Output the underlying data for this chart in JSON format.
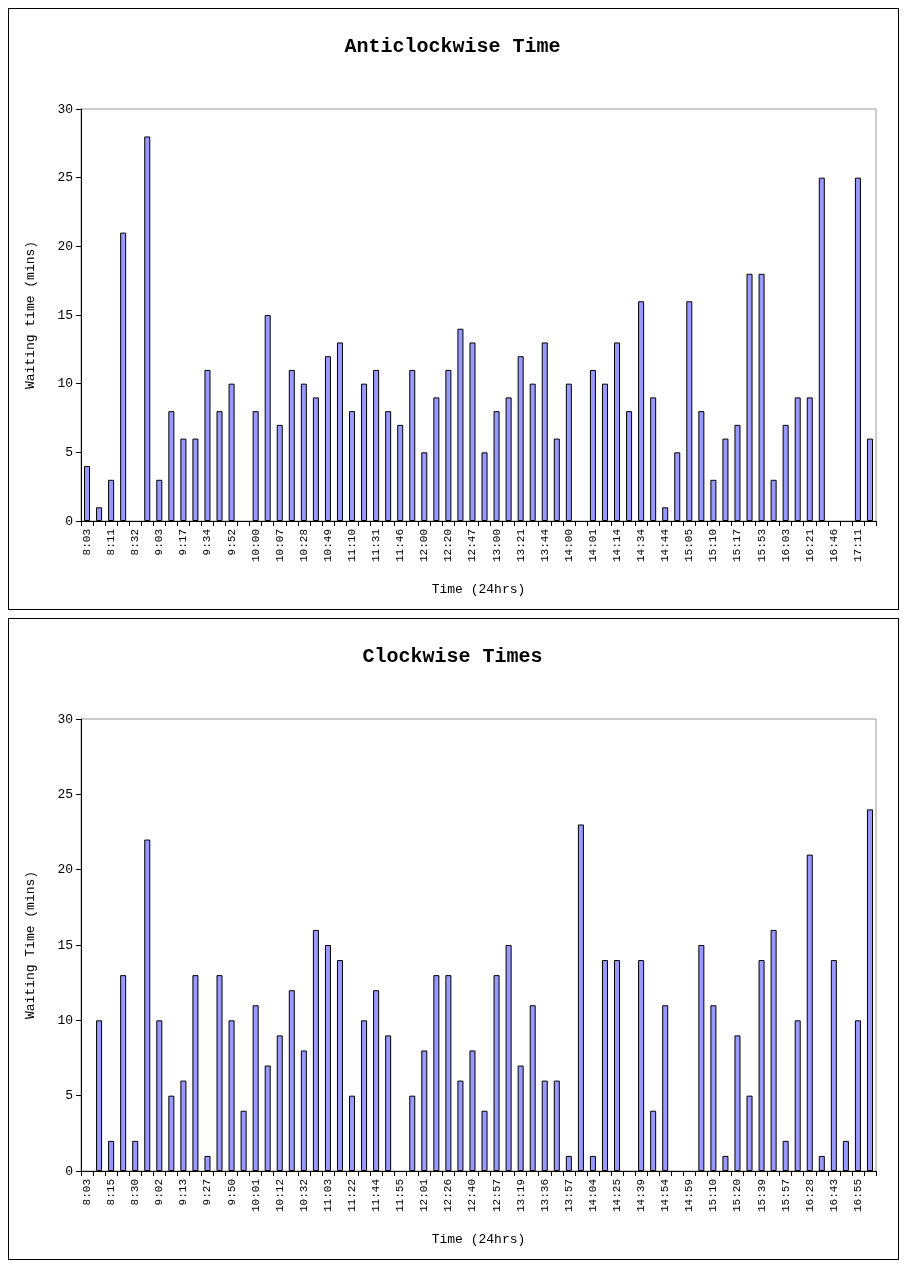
{
  "chart_data": [
    {
      "type": "bar",
      "title": "Anticlockwise Time",
      "xlabel": "Time (24hrs)",
      "ylabel": "Waiting time (mins)",
      "categories": [
        "8:03",
        null,
        "8:11",
        null,
        "8:32",
        null,
        "9:03",
        null,
        "9:17",
        null,
        "9:34",
        null,
        "9:52",
        null,
        "10:00",
        null,
        "10:07",
        null,
        "10:28",
        null,
        "10:49",
        null,
        "11:10",
        null,
        "11:31",
        null,
        "11:46",
        null,
        "12:00",
        null,
        "12:20",
        null,
        "12:47",
        null,
        "13:00",
        null,
        "13:21",
        null,
        "13:44",
        null,
        "14:00",
        null,
        "14:01",
        null,
        "14:14",
        null,
        "14:34",
        null,
        "14:44",
        null,
        "15:05",
        null,
        "15:10",
        null,
        "15:17",
        null,
        "15:53",
        null,
        "16:03",
        null,
        "16:21",
        null,
        "16:46",
        null,
        "17:11",
        null
      ],
      "values": [
        4,
        1,
        3,
        21,
        null,
        28,
        3,
        8,
        6,
        6,
        11,
        8,
        10,
        null,
        8,
        15,
        7,
        11,
        10,
        9,
        12,
        13,
        8,
        10,
        11,
        8,
        7,
        11,
        5,
        9,
        11,
        14,
        13,
        5,
        8,
        9,
        12,
        10,
        13,
        6,
        10,
        null,
        11,
        10,
        13,
        8,
        16,
        9,
        1,
        5,
        16,
        8,
        3,
        6,
        7,
        18,
        18,
        3,
        7,
        9,
        9,
        25,
        null,
        null,
        25,
        6
      ],
      "color": "#9999ff",
      "ylim": [
        0,
        30
      ],
      "yticks": [
        0,
        5,
        10,
        15,
        20,
        25,
        30
      ],
      "grid": false
    },
    {
      "type": "bar",
      "title": "Clockwise Times",
      "xlabel": "Time (24hrs)",
      "ylabel": "Waiting Time (mins)",
      "categories": [
        "8:03",
        null,
        "8:15",
        null,
        "8:30",
        null,
        "9:02",
        null,
        "9:13",
        null,
        "9:27",
        null,
        "9:50",
        null,
        "10:01",
        null,
        "10:12",
        null,
        "10:32",
        null,
        "11:03",
        null,
        "11:22",
        null,
        "11:44",
        null,
        "11:55",
        null,
        "12:01",
        null,
        "12:26",
        null,
        "12:40",
        null,
        "12:57",
        null,
        "13:19",
        null,
        "13:36",
        null,
        "13:57",
        null,
        "14:04",
        null,
        "14:25",
        null,
        "14:39",
        null,
        "14:54",
        null,
        "14:59",
        null,
        "15:10",
        null,
        "15:20",
        null,
        "15:39",
        null,
        "15:57",
        null,
        "16:28",
        null,
        "16:43",
        null,
        "16:55",
        null
      ],
      "values": [
        null,
        10,
        2,
        13,
        2,
        22,
        10,
        5,
        6,
        13,
        1,
        13,
        10,
        4,
        11,
        7,
        9,
        12,
        8,
        16,
        15,
        14,
        5,
        10,
        12,
        9,
        null,
        5,
        8,
        13,
        13,
        6,
        8,
        4,
        13,
        15,
        7,
        11,
        6,
        6,
        1,
        23,
        1,
        14,
        14,
        null,
        14,
        4,
        11,
        null,
        null,
        15,
        11,
        1,
        9,
        5,
        14,
        16,
        2,
        10,
        21,
        1,
        14,
        2,
        10,
        24
      ],
      "color": "#9999ff",
      "ylim": [
        0,
        30
      ],
      "yticks": [
        0,
        5,
        10,
        15,
        20,
        25,
        30
      ],
      "grid": false
    }
  ]
}
